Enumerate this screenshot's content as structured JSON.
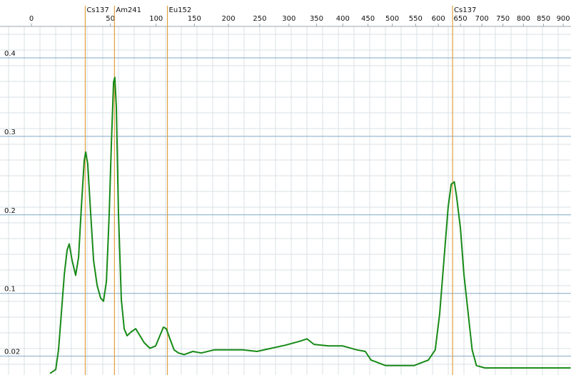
{
  "chart_data": {
    "type": "line",
    "x": [
      5.6,
      8.4,
      9.9,
      11.5,
      13.3,
      15.0,
      16.4,
      18.3,
      20.8,
      22.9,
      25.0,
      27.2,
      28.3,
      30.0,
      32.4,
      34.8,
      37.9,
      41.0,
      43.6,
      46.3,
      48.9,
      51.0,
      53.1,
      54.4,
      55.9,
      58.0,
      60.9,
      63.9,
      66.9,
      71.5,
      76.2,
      81.0,
      85.9,
      92.6,
      99.4,
      104.6,
      109.0,
      112.6,
      117.2,
      122.6,
      128.4,
      135.9,
      147.8,
      159.7,
      178.3,
      199.8,
      222.1,
      245.4,
      269.3,
      294.1,
      319.6,
      332.4,
      345.2,
      372.4,
      399.8,
      427.5,
      444.5,
      456.2,
      486.3,
      515.9,
      546.3,
      577.8,
      593,
      603,
      613,
      622,
      629,
      636,
      641,
      650,
      658,
      668,
      677,
      687,
      707,
      742,
      776,
      812,
      847,
      882,
      919
    ],
    "series": [
      {
        "color": "#178a17",
        "values": [
          -0.002,
          0.003,
          0.028,
          0.074,
          0.124,
          0.155,
          0.163,
          0.142,
          0.123,
          0.146,
          0.21,
          0.269,
          0.28,
          0.265,
          0.201,
          0.142,
          0.11,
          0.094,
          0.09,
          0.115,
          0.201,
          0.292,
          0.369,
          0.375,
          0.337,
          0.201,
          0.092,
          0.055,
          0.046,
          0.051,
          0.055,
          0.046,
          0.037,
          0.03,
          0.033,
          0.046,
          0.057,
          0.055,
          0.042,
          0.028,
          0.024,
          0.022,
          0.026,
          0.024,
          0.028,
          0.028,
          0.028,
          0.026,
          0.03,
          0.034,
          0.039,
          0.042,
          0.035,
          0.033,
          0.033,
          0.028,
          0.026,
          0.015,
          0.008,
          0.008,
          0.008,
          0.015,
          0.028,
          0.074,
          0.146,
          0.21,
          0.239,
          0.242,
          0.224,
          0.183,
          0.124,
          0.074,
          0.028,
          0.008,
          0.005,
          0.005,
          0.005,
          0.005,
          0.005,
          0.005,
          0.005
        ]
      }
    ],
    "markers": [
      {
        "label": "Cs137",
        "x": 28
      },
      {
        "label": "Am241",
        "x": 54
      },
      {
        "label": "Eu152",
        "x": 114
      },
      {
        "label": "Cs137",
        "x": 632
      }
    ],
    "marker_color": "#e0a040",
    "xlim": [
      0,
      920
    ],
    "xscale": "pow",
    "xexponent": 0.66,
    "xticks": [
      0,
      50,
      100,
      150,
      200,
      250,
      300,
      350,
      400,
      450,
      500,
      550,
      600,
      650,
      700,
      750,
      800,
      850,
      900
    ],
    "ylim": [
      -0.004,
      0.44
    ],
    "yticks": [
      0.02,
      0.1,
      0.2,
      0.3,
      0.4
    ],
    "grid": true
  }
}
